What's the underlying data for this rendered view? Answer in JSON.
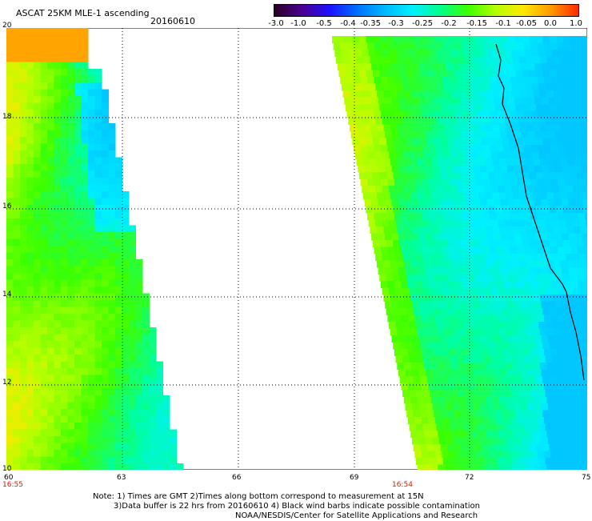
{
  "title": "ASCAT 25KM MLE-1 ascending",
  "date": "20160610",
  "colorbar": {
    "ticks": [
      "-3.0",
      "-1.0",
      "-0.5",
      "-0.4",
      "-0.35",
      "-0.3",
      "-0.25",
      "-0.2",
      "-0.15",
      "-0.1",
      "-0.05",
      "0.0",
      "1.0"
    ],
    "colors": [
      "#2a0028",
      "#4a0090",
      "#1c10ff",
      "#0070ff",
      "#00b8ff",
      "#00f0ff",
      "#00ff8c",
      "#3cff00",
      "#b4ff00",
      "#ffe800",
      "#ff9a00",
      "#ff2800"
    ]
  },
  "axes": {
    "lat_labels": [
      "20",
      "18",
      "16",
      "14",
      "12",
      "10"
    ],
    "lon_labels": [
      "60",
      "63",
      "66",
      "69",
      "72",
      "75"
    ],
    "time_labels": [
      "16:55",
      "16:54"
    ]
  },
  "notes": {
    "line1": "Note: 1) Times are GMT 2)Times along bottom correspond to measurement at 15N",
    "line2": "3)Data buffer is 22 hrs from 20160610 4) Black wind barbs indicate possible contamination",
    "line3": "NOAA/NESDIS/Center for Satellite Applications and Research"
  }
}
